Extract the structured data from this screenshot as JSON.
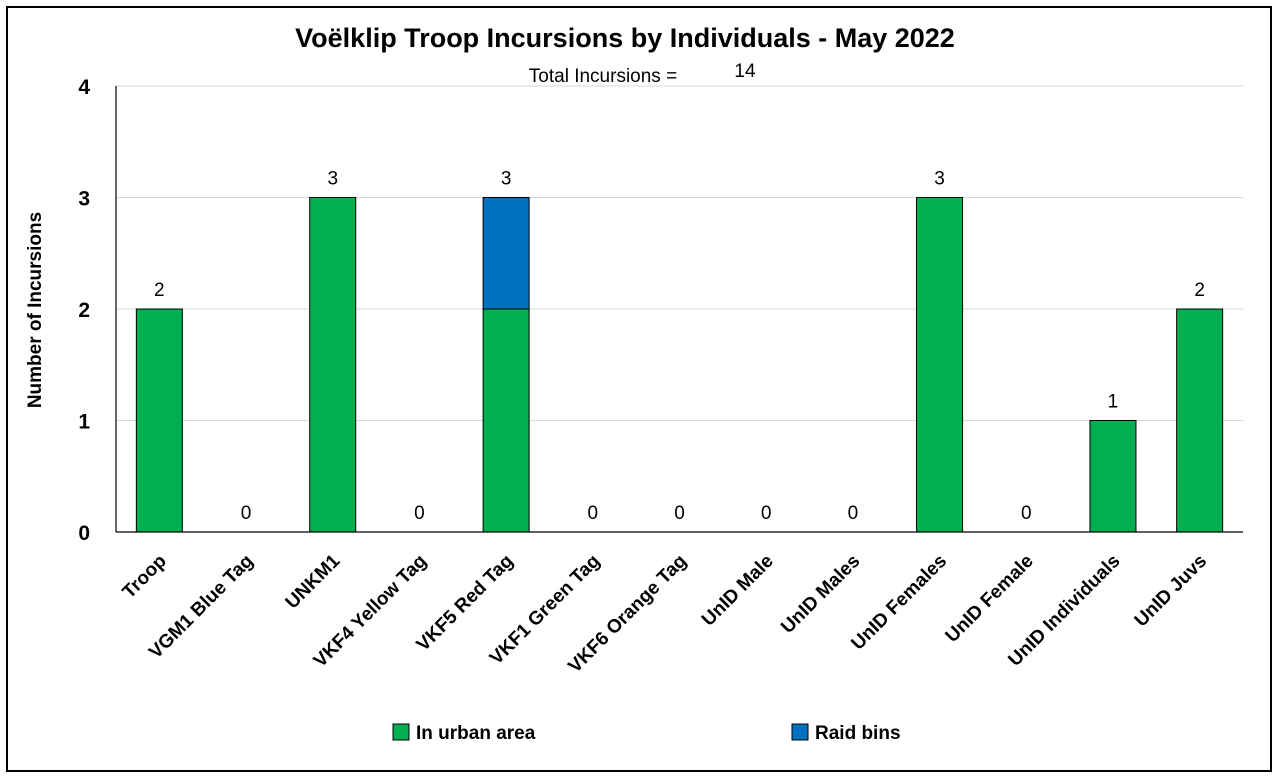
{
  "chart_data": {
    "type": "bar",
    "stacked": true,
    "title": "Voëlklip Troop Incursions by Individuals - May 2022",
    "subtitle_label": "Total Incursions =",
    "subtitle_value": "14",
    "ylabel": "Number of Incursions",
    "xlabel": "",
    "ylim": [
      0,
      4
    ],
    "yticks": [
      "0",
      "1",
      "2",
      "3",
      "4"
    ],
    "grid": true,
    "legend_position": "bottom",
    "categories": [
      "Troop",
      "VGM1 Blue Tag",
      "UNKM1",
      "VKF4 Yellow Tag",
      "VKF5 Red Tag",
      "VKF1 Green Tag",
      "VKF6 Orange Tag",
      "UnID Male",
      "UnID Males",
      "UnID Females",
      "UnID Female",
      "UnID Individuals",
      "UnID Juvs"
    ],
    "series": [
      {
        "name": "In urban area",
        "color": "#00b050",
        "values": [
          2,
          0,
          3,
          0,
          2,
          0,
          0,
          0,
          0,
          3,
          0,
          1,
          2
        ]
      },
      {
        "name": "Raid bins",
        "color": "#0070c0",
        "values": [
          0,
          0,
          0,
          0,
          1,
          0,
          0,
          0,
          0,
          0,
          0,
          0,
          0
        ]
      }
    ],
    "totals": [
      "2",
      "0",
      "3",
      "0",
      "3",
      "0",
      "0",
      "0",
      "0",
      "3",
      "0",
      "1",
      "2"
    ]
  }
}
